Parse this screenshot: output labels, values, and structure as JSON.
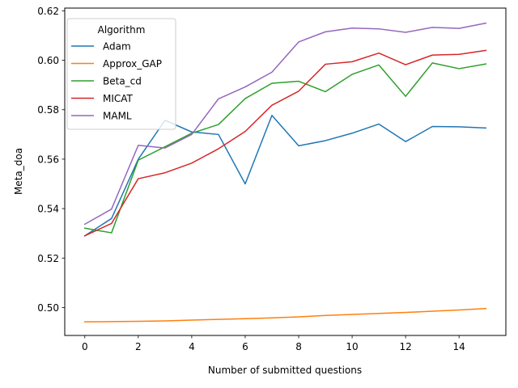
{
  "chart_data": {
    "type": "line",
    "xlabel": "Number of submitted questions",
    "ylabel": "Meta_doa",
    "xlim": [
      -0.75,
      15.75
    ],
    "ylim": [
      0.4887,
      0.6211
    ],
    "xticks": [
      0,
      2,
      4,
      6,
      8,
      10,
      12,
      14
    ],
    "yticks": [
      0.5,
      0.52,
      0.54,
      0.56,
      0.58,
      0.6,
      0.62
    ],
    "ytick_labels": [
      "0.50",
      "0.52",
      "0.54",
      "0.56",
      "0.58",
      "0.60",
      "0.62"
    ],
    "grid": false,
    "legend": {
      "title": "Algorithm",
      "placement": "upper-left"
    },
    "x": [
      0,
      1,
      2,
      3,
      4,
      5,
      6,
      7,
      8,
      9,
      10,
      11,
      12,
      13,
      14,
      15
    ],
    "series": [
      {
        "name": "Adam",
        "color": "#1f77b4",
        "values": [
          0.529,
          0.536,
          0.56,
          0.5757,
          0.571,
          0.57,
          0.55,
          0.5777,
          0.5654,
          0.5675,
          0.5705,
          0.5742,
          0.5671,
          0.5732,
          0.5731,
          0.5726
        ]
      },
      {
        "name": "Approx_GAP",
        "color": "#ff7f0e",
        "values": [
          0.4942,
          0.4943,
          0.4944,
          0.4946,
          0.4949,
          0.4952,
          0.4955,
          0.4958,
          0.4962,
          0.4968,
          0.4972,
          0.4976,
          0.498,
          0.4985,
          0.499,
          0.4996
        ]
      },
      {
        "name": "Beta_cd",
        "color": "#2ca02c",
        "values": [
          0.5321,
          0.5302,
          0.5596,
          0.565,
          0.5705,
          0.574,
          0.5845,
          0.5907,
          0.5915,
          0.5873,
          0.5943,
          0.5981,
          0.5854,
          0.5989,
          0.5966,
          0.5985
        ]
      },
      {
        "name": "MICAT",
        "color": "#d62728",
        "values": [
          0.529,
          0.534,
          0.5521,
          0.5545,
          0.5584,
          0.5642,
          0.5712,
          0.5818,
          0.5875,
          0.5984,
          0.5994,
          0.6029,
          0.5982,
          0.6021,
          0.6024,
          0.604
        ]
      },
      {
        "name": "MAML",
        "color": "#9467bd",
        "values": [
          0.5337,
          0.5398,
          0.5656,
          0.5645,
          0.57,
          0.5844,
          0.5892,
          0.5952,
          0.6074,
          0.6115,
          0.613,
          0.6127,
          0.6113,
          0.6133,
          0.6129,
          0.615
        ]
      }
    ]
  }
}
